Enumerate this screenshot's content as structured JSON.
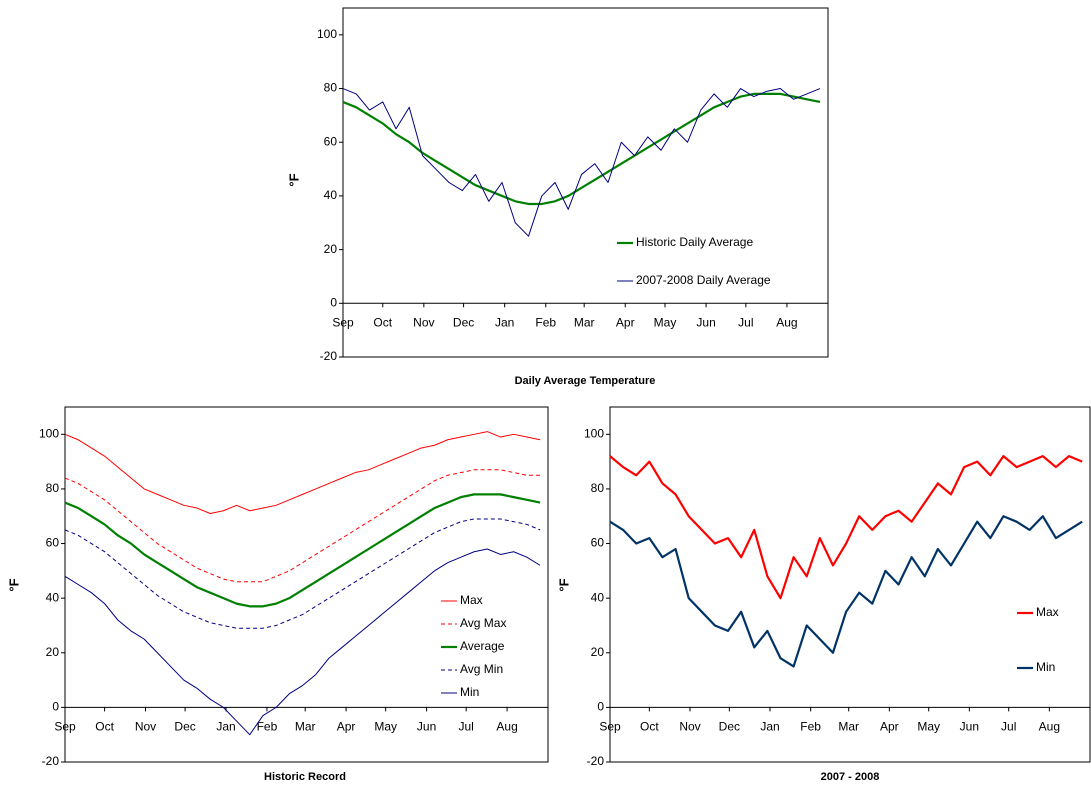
{
  "chart_data": [
    {
      "type": "line",
      "title": "Daily Average Temperature",
      "ylabel": "°F",
      "x": [
        0,
        10,
        20,
        30,
        40,
        50,
        60,
        70,
        80,
        90,
        100,
        110,
        120,
        130,
        140,
        150,
        160,
        170,
        180,
        190,
        200,
        210,
        220,
        230,
        240,
        250,
        260,
        270,
        280,
        290,
        300,
        310,
        320,
        330,
        340,
        350,
        360
      ],
      "xlim": [
        0,
        366
      ],
      "xticks": [
        {
          "value": 0,
          "label": "Sep"
        },
        {
          "value": 30,
          "label": "Oct"
        },
        {
          "value": 61,
          "label": "Nov"
        },
        {
          "value": 91,
          "label": "Dec"
        },
        {
          "value": 122,
          "label": "Jan"
        },
        {
          "value": 153,
          "label": "Feb"
        },
        {
          "value": 182,
          "label": "Mar"
        },
        {
          "value": 213,
          "label": "Apr"
        },
        {
          "value": 243,
          "label": "May"
        },
        {
          "value": 274,
          "label": "Jun"
        },
        {
          "value": 304,
          "label": "Jul"
        },
        {
          "value": 335,
          "label": "Aug"
        }
      ],
      "ylim": [
        -20,
        110
      ],
      "yticks": [
        -20,
        0,
        20,
        40,
        60,
        80,
        100
      ],
      "legend": "lower right",
      "series": [
        {
          "name": "Historic Daily Average",
          "color": "#008000",
          "style": "thick",
          "values": [
            75,
            73,
            70,
            67,
            63,
            60,
            56,
            53,
            50,
            47,
            44,
            42,
            40,
            38,
            37,
            37,
            38,
            40,
            43,
            46,
            49,
            52,
            55,
            58,
            61,
            64,
            67,
            70,
            73,
            75,
            77,
            78,
            78,
            78,
            77,
            76,
            75
          ]
        },
        {
          "name": "2007-2008 Daily Average",
          "color": "#000080",
          "style": "thin",
          "values": [
            80,
            78,
            72,
            75,
            65,
            73,
            55,
            50,
            45,
            42,
            48,
            38,
            45,
            30,
            25,
            40,
            45,
            35,
            48,
            52,
            45,
            60,
            55,
            62,
            57,
            65,
            60,
            72,
            78,
            73,
            80,
            77,
            79,
            80,
            76,
            78,
            80
          ]
        }
      ]
    },
    {
      "type": "line",
      "title": "Historic Record",
      "ylabel": "°F",
      "x": [
        0,
        10,
        20,
        30,
        40,
        50,
        60,
        70,
        80,
        90,
        100,
        110,
        120,
        130,
        140,
        150,
        160,
        170,
        180,
        190,
        200,
        210,
        220,
        230,
        240,
        250,
        260,
        270,
        280,
        290,
        300,
        310,
        320,
        330,
        340,
        350,
        360
      ],
      "xlim": [
        0,
        366
      ],
      "xticks": [
        {
          "value": 0,
          "label": "Sep"
        },
        {
          "value": 30,
          "label": "Oct"
        },
        {
          "value": 61,
          "label": "Nov"
        },
        {
          "value": 91,
          "label": "Dec"
        },
        {
          "value": 122,
          "label": "Jan"
        },
        {
          "value": 153,
          "label": "Feb"
        },
        {
          "value": 182,
          "label": "Mar"
        },
        {
          "value": 213,
          "label": "Apr"
        },
        {
          "value": 243,
          "label": "May"
        },
        {
          "value": 274,
          "label": "Jun"
        },
        {
          "value": 304,
          "label": "Jul"
        },
        {
          "value": 335,
          "label": "Aug"
        }
      ],
      "ylim": [
        -20,
        110
      ],
      "yticks": [
        -20,
        0,
        20,
        40,
        60,
        80,
        100
      ],
      "legend": "lower right",
      "series": [
        {
          "name": "Max",
          "color": "#ff0000",
          "style": "thin",
          "values": [
            100,
            98,
            95,
            92,
            88,
            84,
            80,
            78,
            76,
            74,
            73,
            71,
            72,
            74,
            72,
            73,
            74,
            76,
            78,
            80,
            82,
            84,
            86,
            87,
            89,
            91,
            93,
            95,
            96,
            98,
            99,
            100,
            101,
            99,
            100,
            99,
            98
          ]
        },
        {
          "name": "Avg Max",
          "color": "#ff0000",
          "style": "dashed",
          "values": [
            84,
            82,
            79,
            76,
            72,
            68,
            64,
            60,
            57,
            54,
            51,
            49,
            47,
            46,
            46,
            46,
            48,
            50,
            53,
            56,
            59,
            62,
            65,
            68,
            71,
            74,
            77,
            80,
            83,
            85,
            86,
            87,
            87,
            87,
            86,
            85,
            85
          ]
        },
        {
          "name": "Average",
          "color": "#008000",
          "style": "thick",
          "values": [
            75,
            73,
            70,
            67,
            63,
            60,
            56,
            53,
            50,
            47,
            44,
            42,
            40,
            38,
            37,
            37,
            38,
            40,
            43,
            46,
            49,
            52,
            55,
            58,
            61,
            64,
            67,
            70,
            73,
            75,
            77,
            78,
            78,
            78,
            77,
            76,
            75
          ]
        },
        {
          "name": "Avg Min",
          "color": "#000080",
          "style": "dashed",
          "values": [
            65,
            63,
            60,
            57,
            53,
            49,
            45,
            41,
            38,
            35,
            33,
            31,
            30,
            29,
            29,
            29,
            30,
            32,
            34,
            37,
            40,
            43,
            46,
            49,
            52,
            55,
            58,
            61,
            64,
            66,
            68,
            69,
            69,
            69,
            68,
            67,
            65
          ]
        },
        {
          "name": "Min",
          "color": "#000080",
          "style": "thin",
          "values": [
            48,
            45,
            42,
            38,
            32,
            28,
            25,
            20,
            15,
            10,
            7,
            3,
            0,
            -5,
            -10,
            -3,
            0,
            5,
            8,
            12,
            18,
            22,
            26,
            30,
            34,
            38,
            42,
            46,
            50,
            53,
            55,
            57,
            58,
            56,
            57,
            55,
            52
          ]
        }
      ]
    },
    {
      "type": "line",
      "title": "2007 - 2008",
      "ylabel": "°F",
      "x": [
        0,
        10,
        20,
        30,
        40,
        50,
        60,
        70,
        80,
        90,
        100,
        110,
        120,
        130,
        140,
        150,
        160,
        170,
        180,
        190,
        200,
        210,
        220,
        230,
        240,
        250,
        260,
        270,
        280,
        290,
        300,
        310,
        320,
        330,
        340,
        350,
        360
      ],
      "xlim": [
        0,
        366
      ],
      "xticks": [
        {
          "value": 0,
          "label": "Sep"
        },
        {
          "value": 30,
          "label": "Oct"
        },
        {
          "value": 61,
          "label": "Nov"
        },
        {
          "value": 91,
          "label": "Dec"
        },
        {
          "value": 122,
          "label": "Jan"
        },
        {
          "value": 153,
          "label": "Feb"
        },
        {
          "value": 182,
          "label": "Mar"
        },
        {
          "value": 213,
          "label": "Apr"
        },
        {
          "value": 243,
          "label": "May"
        },
        {
          "value": 274,
          "label": "Jun"
        },
        {
          "value": 304,
          "label": "Jul"
        },
        {
          "value": 335,
          "label": "Aug"
        }
      ],
      "ylim": [
        -20,
        110
      ],
      "yticks": [
        -20,
        0,
        20,
        40,
        60,
        80,
        100
      ],
      "legend": "lower right",
      "series": [
        {
          "name": "Max",
          "color": "#ff0000",
          "style": "thick",
          "values": [
            92,
            88,
            85,
            90,
            82,
            78,
            70,
            65,
            60,
            62,
            55,
            65,
            48,
            40,
            55,
            48,
            62,
            52,
            60,
            70,
            65,
            70,
            72,
            68,
            75,
            82,
            78,
            88,
            90,
            85,
            92,
            88,
            90,
            92,
            88,
            92,
            90
          ]
        },
        {
          "name": "Min",
          "color": "#003366",
          "style": "thick",
          "values": [
            68,
            65,
            60,
            62,
            55,
            58,
            40,
            35,
            30,
            28,
            35,
            22,
            28,
            18,
            15,
            30,
            25,
            20,
            35,
            42,
            38,
            50,
            45,
            55,
            48,
            58,
            52,
            60,
            68,
            62,
            70,
            68,
            65,
            70,
            62,
            65,
            68
          ]
        }
      ]
    }
  ]
}
